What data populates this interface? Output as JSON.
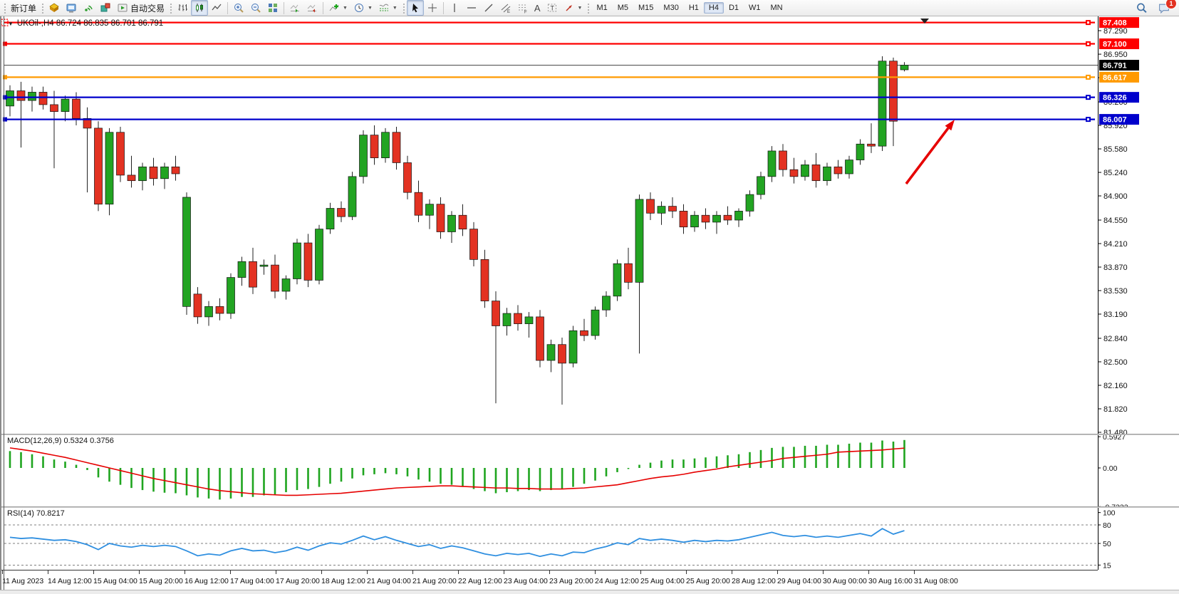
{
  "toolbar": {
    "new_order_label": "新订单",
    "auto_trading_label": "自动交易",
    "text_tool_label": "A",
    "label_tool_label": "T",
    "channel_tool_letter": "E",
    "fibo_tool_letter": "F",
    "timeframes": [
      "M1",
      "M5",
      "M15",
      "M30",
      "H1",
      "H4",
      "D1",
      "W1",
      "MN"
    ],
    "active_timeframe": "H4",
    "chat_badge": "1"
  },
  "chart": {
    "title": "UKOil-,H4  86.724 86.835 86.701 86.791",
    "marker": "▼"
  },
  "chart_data": {
    "type": "candlestick",
    "symbol_period": "UKOil-,H4",
    "ohlc_display": "86.724 86.835 86.701 86.791",
    "current_price": 86.791,
    "current_price_label": "86.791",
    "candle_up_color": "#22a422",
    "candle_down_color": "#e33222",
    "price_axis_ticks": [
      "87.290",
      "86.950",
      "86.610",
      "86.260",
      "85.920",
      "85.580",
      "85.240",
      "84.900",
      "84.550",
      "84.210",
      "83.870",
      "83.530",
      "83.190",
      "82.840",
      "82.500",
      "82.160",
      "81.820",
      "81.480"
    ],
    "time_axis_labels": [
      "11 Aug 2023",
      "14 Aug 12:00",
      "15 Aug 04:00",
      "15 Aug 20:00",
      "16 Aug 12:00",
      "17 Aug 04:00",
      "17 Aug 20:00",
      "18 Aug 12:00",
      "21 Aug 04:00",
      "21 Aug 20:00",
      "22 Aug 12:00",
      "23 Aug 04:00",
      "23 Aug 20:00",
      "24 Aug 12:00",
      "25 Aug 04:00",
      "25 Aug 20:00",
      "28 Aug 12:00",
      "29 Aug 04:00",
      "30 Aug 00:00",
      "30 Aug 16:00",
      "31 Aug 08:00"
    ],
    "hlines": [
      {
        "price": 87.408,
        "label": "87.408",
        "color": "#fe0000",
        "selected": true
      },
      {
        "price": 87.1,
        "label": "87.100",
        "color": "#fe0000",
        "selected": false
      },
      {
        "price": 86.617,
        "label": "86.617",
        "color": "#ff9a00",
        "selected": false
      },
      {
        "price": 86.326,
        "label": "86.326",
        "color": "#0000cc",
        "selected": false
      },
      {
        "price": 86.007,
        "label": "86.007",
        "color": "#0000cc",
        "selected": false
      }
    ],
    "candles": [
      [
        86.2,
        86.5,
        86.05,
        86.42
      ],
      [
        86.42,
        86.55,
        85.6,
        86.28
      ],
      [
        86.28,
        86.48,
        86.12,
        86.4
      ],
      [
        86.4,
        86.48,
        86.15,
        86.22
      ],
      [
        86.22,
        86.42,
        85.3,
        86.12
      ],
      [
        86.12,
        86.35,
        85.98,
        86.3
      ],
      [
        86.3,
        86.4,
        85.92,
        86.02
      ],
      [
        86.02,
        86.18,
        84.95,
        85.88
      ],
      [
        85.88,
        85.98,
        84.68,
        84.78
      ],
      [
        84.78,
        85.88,
        84.62,
        85.82
      ],
      [
        85.82,
        85.9,
        85.1,
        85.2
      ],
      [
        85.2,
        85.48,
        85.02,
        85.12
      ],
      [
        85.12,
        85.38,
        84.98,
        85.32
      ],
      [
        85.32,
        85.45,
        85.05,
        85.15
      ],
      [
        85.15,
        85.38,
        85.0,
        85.32
      ],
      [
        85.32,
        85.48,
        85.12,
        85.22
      ],
      [
        83.3,
        84.95,
        83.18,
        84.88
      ],
      [
        83.48,
        83.58,
        83.05,
        83.15
      ],
      [
        83.15,
        83.38,
        83.02,
        83.3
      ],
      [
        83.3,
        83.42,
        83.1,
        83.2
      ],
      [
        83.2,
        83.78,
        83.12,
        83.72
      ],
      [
        83.72,
        84.02,
        83.6,
        83.95
      ],
      [
        83.95,
        84.15,
        83.48,
        83.58
      ],
      [
        83.88,
        83.98,
        83.76,
        83.9
      ],
      [
        83.9,
        84.05,
        83.42,
        83.52
      ],
      [
        83.52,
        83.75,
        83.4,
        83.7
      ],
      [
        83.7,
        84.28,
        83.62,
        84.22
      ],
      [
        84.22,
        84.35,
        83.58,
        83.68
      ],
      [
        83.68,
        84.48,
        83.62,
        84.42
      ],
      [
        84.42,
        84.8,
        84.35,
        84.72
      ],
      [
        84.72,
        84.82,
        84.52,
        84.6
      ],
      [
        84.6,
        85.25,
        84.55,
        85.18
      ],
      [
        85.18,
        85.85,
        85.08,
        85.78
      ],
      [
        85.78,
        85.92,
        85.35,
        85.45
      ],
      [
        85.45,
        85.88,
        85.38,
        85.82
      ],
      [
        85.82,
        85.9,
        85.28,
        85.38
      ],
      [
        85.38,
        85.48,
        84.85,
        84.95
      ],
      [
        84.95,
        85.12,
        84.52,
        84.62
      ],
      [
        84.62,
        84.85,
        84.42,
        84.78
      ],
      [
        84.78,
        84.88,
        84.28,
        84.38
      ],
      [
        84.38,
        84.68,
        84.22,
        84.62
      ],
      [
        84.62,
        84.78,
        84.32,
        84.42
      ],
      [
        84.42,
        84.52,
        83.88,
        83.98
      ],
      [
        83.98,
        84.12,
        83.28,
        83.38
      ],
      [
        83.38,
        83.52,
        81.9,
        83.02
      ],
      [
        83.02,
        83.28,
        82.88,
        83.2
      ],
      [
        83.2,
        83.32,
        82.95,
        83.05
      ],
      [
        83.05,
        83.22,
        82.85,
        83.15
      ],
      [
        83.15,
        83.25,
        82.42,
        82.52
      ],
      [
        82.52,
        82.82,
        82.35,
        82.75
      ],
      [
        82.75,
        82.85,
        81.88,
        82.48
      ],
      [
        82.48,
        83.02,
        82.42,
        82.95
      ],
      [
        82.95,
        83.12,
        82.8,
        82.88
      ],
      [
        82.88,
        83.3,
        82.82,
        83.25
      ],
      [
        83.25,
        83.52,
        83.15,
        83.45
      ],
      [
        83.45,
        83.98,
        83.38,
        83.92
      ],
      [
        83.92,
        84.15,
        83.55,
        83.65
      ],
      [
        83.65,
        84.92,
        82.62,
        84.85
      ],
      [
        84.85,
        84.95,
        84.55,
        84.65
      ],
      [
        84.65,
        84.82,
        84.48,
        84.75
      ],
      [
        84.75,
        84.88,
        84.58,
        84.68
      ],
      [
        84.68,
        84.78,
        84.35,
        84.45
      ],
      [
        84.45,
        84.68,
        84.38,
        84.62
      ],
      [
        84.62,
        84.72,
        84.42,
        84.52
      ],
      [
        84.52,
        84.68,
        84.35,
        84.62
      ],
      [
        84.62,
        84.75,
        84.48,
        84.55
      ],
      [
        84.55,
        84.72,
        84.45,
        84.68
      ],
      [
        84.68,
        84.98,
        84.6,
        84.92
      ],
      [
        84.92,
        85.25,
        84.85,
        85.18
      ],
      [
        85.18,
        85.62,
        85.1,
        85.55
      ],
      [
        85.55,
        85.65,
        85.18,
        85.28
      ],
      [
        85.28,
        85.45,
        85.08,
        85.18
      ],
      [
        85.18,
        85.42,
        85.12,
        85.35
      ],
      [
        85.35,
        85.52,
        85.02,
        85.12
      ],
      [
        85.12,
        85.38,
        85.05,
        85.32
      ],
      [
        85.32,
        85.42,
        85.15,
        85.22
      ],
      [
        85.22,
        85.48,
        85.15,
        85.42
      ],
      [
        85.42,
        85.72,
        85.35,
        85.65
      ],
      [
        85.65,
        85.95,
        85.52,
        85.62
      ],
      [
        85.62,
        86.92,
        85.55,
        86.85
      ],
      [
        86.85,
        86.9,
        85.62,
        85.98
      ],
      [
        86.724,
        86.835,
        86.701,
        86.791
      ]
    ],
    "indicators": {
      "macd": {
        "label": "MACD(12,26,9) 0.5324 0.3756",
        "axis_ticks": [
          "0.5927",
          "0.00",
          "-0.7332"
        ],
        "axis_tick_values": [
          0.5927,
          0.0,
          -0.7332
        ],
        "hist_color": "#1fa51f",
        "signal_color": "#e60000",
        "hist": [
          0.32,
          0.3,
          0.26,
          0.22,
          0.16,
          0.12,
          0.06,
          -0.04,
          -0.18,
          -0.26,
          -0.32,
          -0.38,
          -0.42,
          -0.45,
          -0.47,
          -0.48,
          -0.52,
          -0.56,
          -0.58,
          -0.6,
          -0.58,
          -0.55,
          -0.55,
          -0.52,
          -0.5,
          -0.46,
          -0.42,
          -0.4,
          -0.36,
          -0.3,
          -0.26,
          -0.2,
          -0.14,
          -0.12,
          -0.1,
          -0.12,
          -0.16,
          -0.22,
          -0.26,
          -0.3,
          -0.32,
          -0.36,
          -0.4,
          -0.44,
          -0.48,
          -0.46,
          -0.44,
          -0.42,
          -0.44,
          -0.42,
          -0.4,
          -0.36,
          -0.3,
          -0.24,
          -0.16,
          -0.08,
          -0.02,
          0.06,
          0.1,
          0.14,
          0.16,
          0.16,
          0.18,
          0.2,
          0.22,
          0.24,
          0.26,
          0.3,
          0.34,
          0.38,
          0.4,
          0.4,
          0.42,
          0.42,
          0.44,
          0.44,
          0.46,
          0.48,
          0.48,
          0.52,
          0.5,
          0.53
        ],
        "signal": [
          0.38,
          0.35,
          0.32,
          0.28,
          0.24,
          0.2,
          0.15,
          0.1,
          0.05,
          0.0,
          -0.05,
          -0.1,
          -0.15,
          -0.2,
          -0.24,
          -0.28,
          -0.32,
          -0.36,
          -0.4,
          -0.43,
          -0.45,
          -0.47,
          -0.49,
          -0.5,
          -0.51,
          -0.52,
          -0.52,
          -0.51,
          -0.5,
          -0.49,
          -0.48,
          -0.46,
          -0.44,
          -0.42,
          -0.4,
          -0.38,
          -0.37,
          -0.36,
          -0.35,
          -0.34,
          -0.34,
          -0.35,
          -0.36,
          -0.37,
          -0.38,
          -0.38,
          -0.39,
          -0.39,
          -0.4,
          -0.4,
          -0.4,
          -0.39,
          -0.38,
          -0.36,
          -0.34,
          -0.32,
          -0.28,
          -0.24,
          -0.2,
          -0.17,
          -0.15,
          -0.12,
          -0.08,
          -0.05,
          -0.02,
          0.02,
          0.05,
          0.08,
          0.11,
          0.14,
          0.18,
          0.2,
          0.22,
          0.24,
          0.26,
          0.3,
          0.31,
          0.32,
          0.33,
          0.34,
          0.36,
          0.376
        ]
      },
      "rsi": {
        "label": "RSI(14) 70.8217",
        "axis_ticks": [
          "100",
          "80",
          "50",
          "15"
        ],
        "axis_tick_values": [
          100,
          80,
          50,
          15
        ],
        "levels": [
          80,
          50,
          15
        ],
        "color": "#2f8fe0",
        "values": [
          60,
          58,
          59,
          57,
          55,
          56,
          53,
          48,
          40,
          50,
          46,
          44,
          47,
          45,
          47,
          45,
          38,
          30,
          33,
          31,
          38,
          42,
          38,
          39,
          35,
          38,
          44,
          39,
          46,
          51,
          49,
          55,
          62,
          56,
          61,
          55,
          50,
          45,
          48,
          42,
          46,
          43,
          38,
          33,
          30,
          34,
          32,
          34,
          29,
          33,
          30,
          36,
          35,
          41,
          45,
          51,
          48,
          58,
          55,
          57,
          55,
          52,
          55,
          53,
          55,
          54,
          56,
          60,
          64,
          68,
          63,
          61,
          63,
          60,
          62,
          60,
          63,
          66,
          62,
          74,
          65,
          70.82
        ]
      }
    },
    "annotations": {
      "arrow": {
        "from": [
          1272,
          258
        ],
        "to": [
          1340,
          168
        ],
        "color": "#e60000"
      }
    }
  }
}
